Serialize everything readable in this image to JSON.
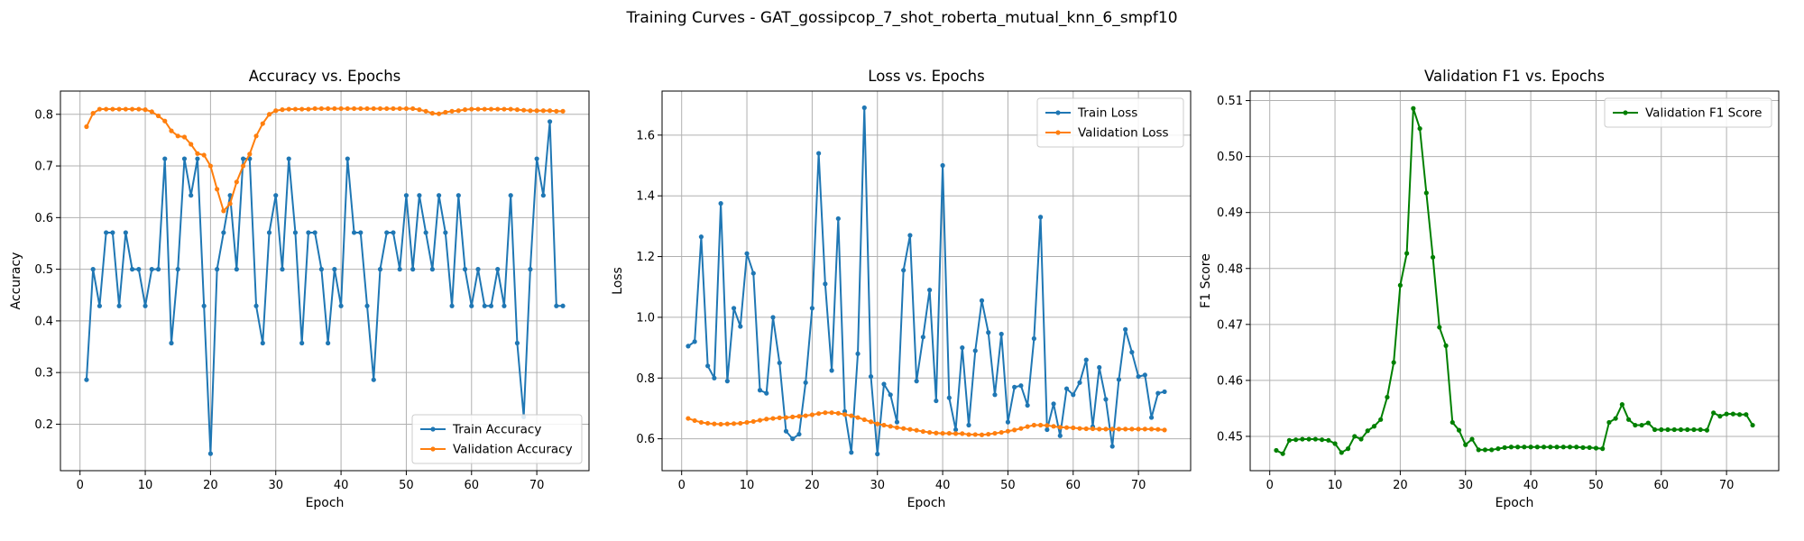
{
  "figure": {
    "title": "Training Curves - GAT_gossipcop_7_shot_roberta_mutual_knn_6_smpf10"
  },
  "chart_data": [
    {
      "type": "line",
      "title": "Accuracy vs. Epochs",
      "xlabel": "Epoch",
      "ylabel": "Accuracy",
      "xlim": [
        -3.0,
        78.0
      ],
      "ylim": [
        0.11,
        0.845
      ],
      "xticks": [
        0,
        10,
        20,
        30,
        40,
        50,
        60,
        70
      ],
      "yticks": [
        0.2,
        0.3,
        0.4,
        0.5,
        0.6,
        0.7,
        0.8
      ],
      "ytick_labels": [
        "0.2",
        "0.3",
        "0.4",
        "0.5",
        "0.6",
        "0.7",
        "0.8"
      ],
      "grid": true,
      "legend_position": "lower-right",
      "series": [
        {
          "name": "Train Accuracy",
          "color": "#1f77b4",
          "x": [
            1,
            2,
            3,
            4,
            5,
            6,
            7,
            8,
            9,
            10,
            11,
            12,
            13,
            14,
            15,
            16,
            17,
            18,
            19,
            20,
            21,
            22,
            23,
            24,
            25,
            26,
            27,
            28,
            29,
            30,
            31,
            32,
            33,
            34,
            35,
            36,
            37,
            38,
            39,
            40,
            41,
            42,
            43,
            44,
            45,
            46,
            47,
            48,
            49,
            50,
            51,
            52,
            53,
            54,
            55,
            56,
            57,
            58,
            59,
            60,
            61,
            62,
            63,
            64,
            65,
            66,
            67,
            68,
            69,
            70,
            71,
            72,
            73,
            74
          ],
          "y": [
            0.286,
            0.5,
            0.429,
            0.571,
            0.571,
            0.429,
            0.571,
            0.5,
            0.5,
            0.429,
            0.5,
            0.5,
            0.714,
            0.357,
            0.5,
            0.714,
            0.643,
            0.714,
            0.429,
            0.143,
            0.5,
            0.571,
            0.643,
            0.5,
            0.714,
            0.714,
            0.429,
            0.357,
            0.571,
            0.643,
            0.5,
            0.714,
            0.571,
            0.357,
            0.571,
            0.571,
            0.5,
            0.357,
            0.5,
            0.429,
            0.714,
            0.571,
            0.571,
            0.429,
            0.286,
            0.5,
            0.571,
            0.571,
            0.5,
            0.643,
            0.5,
            0.643,
            0.571,
            0.5,
            0.643,
            0.571,
            0.429,
            0.643,
            0.5,
            0.429,
            0.5,
            0.429,
            0.429,
            0.5,
            0.429,
            0.643,
            0.357,
            0.214,
            0.5,
            0.714,
            0.643,
            0.786,
            0.429,
            0.429
          ]
        },
        {
          "name": "Validation Accuracy",
          "color": "#ff7f0e",
          "x": [
            1,
            2,
            3,
            4,
            5,
            6,
            7,
            8,
            9,
            10,
            11,
            12,
            13,
            14,
            15,
            16,
            17,
            18,
            19,
            20,
            21,
            22,
            23,
            24,
            25,
            26,
            27,
            28,
            29,
            30,
            31,
            32,
            33,
            34,
            35,
            36,
            37,
            38,
            39,
            40,
            41,
            42,
            43,
            44,
            45,
            46,
            47,
            48,
            49,
            50,
            51,
            52,
            53,
            54,
            55,
            56,
            57,
            58,
            59,
            60,
            61,
            62,
            63,
            64,
            65,
            66,
            67,
            68,
            69,
            70,
            71,
            72,
            73,
            74
          ],
          "y": [
            0.776,
            0.802,
            0.81,
            0.81,
            0.81,
            0.81,
            0.81,
            0.81,
            0.81,
            0.809,
            0.805,
            0.797,
            0.787,
            0.768,
            0.758,
            0.756,
            0.742,
            0.724,
            0.721,
            0.7,
            0.655,
            0.613,
            0.627,
            0.669,
            0.7,
            0.723,
            0.758,
            0.782,
            0.8,
            0.807,
            0.809,
            0.81,
            0.81,
            0.81,
            0.81,
            0.811,
            0.811,
            0.811,
            0.811,
            0.811,
            0.811,
            0.811,
            0.811,
            0.811,
            0.811,
            0.811,
            0.811,
            0.811,
            0.811,
            0.811,
            0.811,
            0.809,
            0.806,
            0.802,
            0.801,
            0.804,
            0.806,
            0.807,
            0.809,
            0.81,
            0.81,
            0.81,
            0.81,
            0.81,
            0.81,
            0.81,
            0.809,
            0.808,
            0.807,
            0.807,
            0.807,
            0.807,
            0.806,
            0.806
          ]
        }
      ]
    },
    {
      "type": "line",
      "title": "Loss vs. Epochs",
      "xlabel": "Epoch",
      "ylabel": "Loss",
      "xlim": [
        -3.0,
        78.0
      ],
      "ylim": [
        0.495,
        1.745
      ],
      "xticks": [
        0,
        10,
        20,
        30,
        40,
        50,
        60,
        70
      ],
      "yticks": [
        0.6,
        0.8,
        1.0,
        1.2,
        1.4,
        1.6
      ],
      "ytick_labels": [
        "0.6",
        "0.8",
        "1.0",
        "1.2",
        "1.4",
        "1.6"
      ],
      "grid": true,
      "legend_position": "upper-right",
      "series": [
        {
          "name": "Train Loss",
          "color": "#1f77b4",
          "x": [
            1,
            2,
            3,
            4,
            5,
            6,
            7,
            8,
            9,
            10,
            11,
            12,
            13,
            14,
            15,
            16,
            17,
            18,
            19,
            20,
            21,
            22,
            23,
            24,
            25,
            26,
            27,
            28,
            29,
            30,
            31,
            32,
            33,
            34,
            35,
            36,
            37,
            38,
            39,
            40,
            41,
            42,
            43,
            44,
            45,
            46,
            47,
            48,
            49,
            50,
            51,
            52,
            53,
            54,
            55,
            56,
            57,
            58,
            59,
            60,
            61,
            62,
            63,
            64,
            65,
            66,
            67,
            68,
            69,
            70,
            71,
            72,
            73,
            74
          ],
          "y": [
            0.905,
            0.92,
            1.265,
            0.84,
            0.8,
            1.375,
            0.79,
            1.03,
            0.97,
            1.21,
            1.145,
            0.76,
            0.75,
            1.0,
            0.85,
            0.625,
            0.6,
            0.615,
            0.785,
            1.03,
            1.54,
            1.11,
            0.825,
            1.325,
            0.69,
            0.555,
            0.88,
            1.69,
            0.805,
            0.55,
            0.78,
            0.745,
            0.655,
            1.155,
            1.27,
            0.79,
            0.935,
            1.09,
            0.725,
            1.5,
            0.735,
            0.63,
            0.9,
            0.645,
            0.89,
            1.055,
            0.95,
            0.745,
            0.945,
            0.655,
            0.77,
            0.775,
            0.71,
            0.93,
            1.33,
            0.63,
            0.715,
            0.61,
            0.765,
            0.745,
            0.785,
            0.86,
            0.64,
            0.835,
            0.73,
            0.575,
            0.795,
            0.96,
            0.885,
            0.805,
            0.81,
            0.67,
            0.75,
            0.755
          ]
        },
        {
          "name": "Validation Loss",
          "color": "#ff7f0e",
          "x": [
            1,
            2,
            3,
            4,
            5,
            6,
            7,
            8,
            9,
            10,
            11,
            12,
            13,
            14,
            15,
            16,
            17,
            18,
            19,
            20,
            21,
            22,
            23,
            24,
            25,
            26,
            27,
            28,
            29,
            30,
            31,
            32,
            33,
            34,
            35,
            36,
            37,
            38,
            39,
            40,
            41,
            42,
            43,
            44,
            45,
            46,
            47,
            48,
            49,
            50,
            51,
            52,
            53,
            54,
            55,
            56,
            57,
            58,
            59,
            60,
            61,
            62,
            63,
            64,
            65,
            66,
            67,
            68,
            69,
            70,
            71,
            72,
            73,
            74
          ],
          "y": [
            0.667,
            0.66,
            0.654,
            0.651,
            0.649,
            0.648,
            0.649,
            0.65,
            0.651,
            0.654,
            0.657,
            0.661,
            0.665,
            0.667,
            0.669,
            0.67,
            0.672,
            0.674,
            0.676,
            0.679,
            0.683,
            0.686,
            0.686,
            0.684,
            0.68,
            0.676,
            0.67,
            0.663,
            0.656,
            0.649,
            0.645,
            0.641,
            0.637,
            0.634,
            0.631,
            0.628,
            0.624,
            0.621,
            0.619,
            0.618,
            0.618,
            0.617,
            0.617,
            0.614,
            0.614,
            0.613,
            0.615,
            0.618,
            0.621,
            0.625,
            0.629,
            0.634,
            0.64,
            0.645,
            0.645,
            0.644,
            0.641,
            0.638,
            0.637,
            0.636,
            0.634,
            0.633,
            0.633,
            0.632,
            0.632,
            0.632,
            0.632,
            0.632,
            0.632,
            0.632,
            0.632,
            0.632,
            0.631,
            0.629
          ]
        }
      ]
    },
    {
      "type": "line",
      "title": "Validation F1 vs. Epochs",
      "xlabel": "Epoch",
      "ylabel": "F1 Score",
      "xlim": [
        -3.0,
        78.0
      ],
      "ylim": [
        0.44387,
        0.5117
      ],
      "xticks": [
        0,
        10,
        20,
        30,
        40,
        50,
        60,
        70
      ],
      "yticks": [
        0.45,
        0.46,
        0.47,
        0.48,
        0.49,
        0.5,
        0.51
      ],
      "ytick_labels": [
        "0.45",
        "0.46",
        "0.47",
        "0.48",
        "0.49",
        "0.50",
        "0.51"
      ],
      "grid": true,
      "legend_position": "upper-right",
      "series": [
        {
          "name": "Validation F1 Score",
          "color": "#008000",
          "x": [
            1,
            2,
            3,
            4,
            5,
            6,
            7,
            8,
            9,
            10,
            11,
            12,
            13,
            14,
            15,
            16,
            17,
            18,
            19,
            20,
            21,
            22,
            23,
            24,
            25,
            26,
            27,
            28,
            29,
            30,
            31,
            32,
            33,
            34,
            35,
            36,
            37,
            38,
            39,
            40,
            41,
            42,
            43,
            44,
            45,
            46,
            47,
            48,
            49,
            50,
            51,
            52,
            53,
            54,
            55,
            56,
            57,
            58,
            59,
            60,
            61,
            62,
            63,
            64,
            65,
            66,
            67,
            68,
            69,
            70,
            71,
            72,
            73,
            74
          ],
          "y": [
            0.4475,
            0.4469,
            0.4493,
            0.4494,
            0.4495,
            0.4495,
            0.4495,
            0.4494,
            0.4493,
            0.4487,
            0.4471,
            0.4478,
            0.45,
            0.4495,
            0.451,
            0.4518,
            0.453,
            0.457,
            0.4632,
            0.477,
            0.4827,
            0.5086,
            0.505,
            0.4935,
            0.482,
            0.4695,
            0.4662,
            0.4525,
            0.4511,
            0.4485,
            0.4495,
            0.4476,
            0.4476,
            0.4476,
            0.4478,
            0.448,
            0.4481,
            0.4481,
            0.4481,
            0.4481,
            0.4481,
            0.4481,
            0.4481,
            0.4481,
            0.4481,
            0.4481,
            0.4481,
            0.448,
            0.448,
            0.4479,
            0.4478,
            0.4525,
            0.4532,
            0.4557,
            0.453,
            0.452,
            0.452,
            0.4524,
            0.4512,
            0.4512,
            0.4512,
            0.4512,
            0.4512,
            0.4512,
            0.4512,
            0.4512,
            0.4511,
            0.4542,
            0.4536,
            0.454,
            0.454,
            0.4539,
            0.4539,
            0.452
          ]
        }
      ]
    }
  ]
}
